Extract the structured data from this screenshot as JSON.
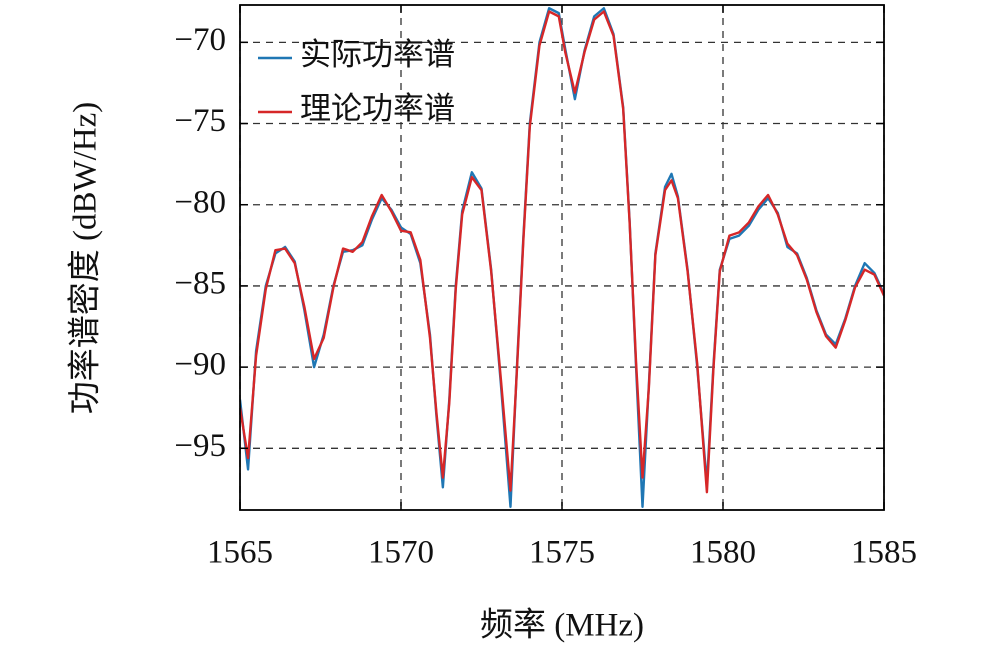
{
  "chart_data": {
    "type": "line",
    "x_label": "频率 (MHz)",
    "y_label": "功率谱密度 (dBW/Hz)",
    "x": [
      1565.0,
      1565.25,
      1565.5,
      1565.8,
      1566.1,
      1566.4,
      1566.7,
      1567.0,
      1567.3,
      1567.6,
      1567.9,
      1568.2,
      1568.5,
      1568.8,
      1569.1,
      1569.4,
      1569.7,
      1570.0,
      1570.3,
      1570.6,
      1570.9,
      1571.1,
      1571.3,
      1571.5,
      1571.7,
      1571.9,
      1572.2,
      1572.5,
      1572.8,
      1573.1,
      1573.4,
      1573.6,
      1573.8,
      1574.0,
      1574.3,
      1574.6,
      1574.9,
      1575.1,
      1575.4,
      1575.7,
      1576.0,
      1576.3,
      1576.6,
      1576.9,
      1577.1,
      1577.3,
      1577.5,
      1577.7,
      1577.9,
      1578.2,
      1578.4,
      1578.6,
      1578.9,
      1579.2,
      1579.5,
      1579.7,
      1579.9,
      1580.2,
      1580.5,
      1580.8,
      1581.1,
      1581.4,
      1581.7,
      1582.0,
      1582.3,
      1582.6,
      1582.9,
      1583.2,
      1583.5,
      1583.8,
      1584.1,
      1584.4,
      1584.7,
      1585.0
    ],
    "series": [
      {
        "name": "实际功率谱",
        "color": "#1f77b4",
        "values": [
          -92,
          -96.3,
          -89,
          -85,
          -83,
          -82.6,
          -83.5,
          -86.5,
          -90,
          -88,
          -85,
          -82.9,
          -82.8,
          -82.5,
          -80.9,
          -79.6,
          -80.3,
          -81.4,
          -81.8,
          -83.6,
          -88,
          -93,
          -97.4,
          -92,
          -85,
          -80.4,
          -78,
          -79,
          -84,
          -91,
          -98.6,
          -90,
          -82,
          -75,
          -70,
          -67.9,
          -68.2,
          -70.4,
          -73.5,
          -70.5,
          -68.4,
          -67.9,
          -69.5,
          -74,
          -81,
          -90,
          -98.6,
          -91,
          -83,
          -78.9,
          -78.1,
          -79.5,
          -84,
          -90,
          -97.2,
          -90,
          -84,
          -82.1,
          -81.9,
          -81.3,
          -80.3,
          -79.6,
          -80.5,
          -82.6,
          -83,
          -84.5,
          -86.5,
          -88,
          -88.6,
          -87,
          -85,
          -83.6,
          -84.2,
          -85.5
        ]
      },
      {
        "name": "理论功率谱",
        "color": "#d62728",
        "values": [
          -92.5,
          -95.6,
          -89.3,
          -85.2,
          -82.8,
          -82.7,
          -83.6,
          -86.3,
          -89.5,
          -88.2,
          -85.1,
          -82.7,
          -82.9,
          -82.3,
          -80.7,
          -79.4,
          -80.4,
          -81.6,
          -81.7,
          -83.4,
          -88.2,
          -92.8,
          -96.8,
          -92.2,
          -85.2,
          -80.6,
          -78.3,
          -79.1,
          -84.1,
          -90.7,
          -97.6,
          -90.2,
          -82.2,
          -75.2,
          -70.2,
          -68.1,
          -68.4,
          -70.6,
          -73.1,
          -70.6,
          -68.6,
          -68.1,
          -69.6,
          -74.1,
          -81.1,
          -89.7,
          -96.8,
          -91.2,
          -83.1,
          -79.1,
          -78.5,
          -79.6,
          -84.1,
          -89.8,
          -97.7,
          -90.2,
          -84.1,
          -81.9,
          -81.7,
          -81.1,
          -80.1,
          -79.4,
          -80.6,
          -82.4,
          -83.1,
          -84.6,
          -86.6,
          -88.1,
          -88.8,
          -87.1,
          -85.1,
          -84,
          -84.3,
          -85.6
        ]
      }
    ],
    "xlim": [
      1565,
      1585
    ],
    "ylim": [
      -98.8,
      -67.7
    ],
    "xticks": [
      1565,
      1570,
      1575,
      1580,
      1585
    ],
    "yticks": [
      {
        "value": -95,
        "label": "−95"
      },
      {
        "value": -90,
        "label": "−90"
      },
      {
        "value": -85,
        "label": "−85"
      },
      {
        "value": -80,
        "label": "−80"
      },
      {
        "value": -75,
        "label": "−75"
      },
      {
        "value": -70,
        "label": "−70"
      }
    ],
    "grid": true,
    "legend": "upper left"
  }
}
